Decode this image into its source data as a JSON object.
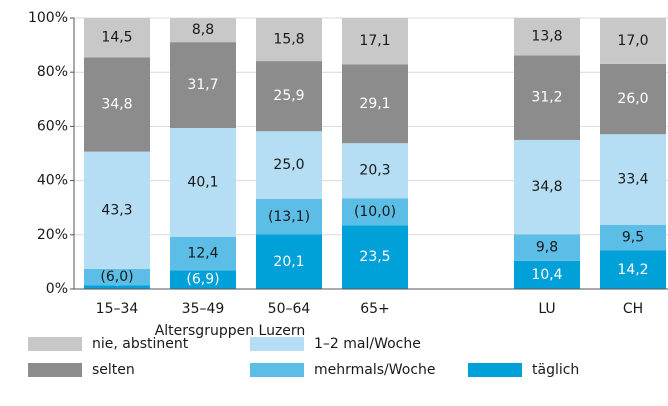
{
  "chart_data": {
    "type": "bar",
    "stacked": true,
    "xlabel": "Altersgruppen Luzern",
    "categories": [
      "15–34",
      "35–49",
      "50–64",
      "65+",
      null,
      "LU",
      "CH"
    ],
    "ylim": [
      0,
      100
    ],
    "yticks": [
      {
        "value": 0,
        "label": "0%"
      },
      {
        "value": 20,
        "label": "20%"
      },
      {
        "value": 40,
        "label": "40%"
      },
      {
        "value": 60,
        "label": "60%"
      },
      {
        "value": 80,
        "label": "80%"
      },
      {
        "value": 100,
        "label": "100%"
      }
    ],
    "grid": true,
    "series": [
      {
        "name": "täglich",
        "color": "#00a0d8",
        "label_color": "#ffffff",
        "values": [
          1.4,
          6.9,
          20.1,
          23.5,
          null,
          10.4,
          14.2
        ],
        "value_labels": [
          "*",
          "(6,9)",
          "20,1",
          "23,5",
          null,
          "10,4",
          "14,2"
        ]
      },
      {
        "name": "mehrmals/Woche",
        "color": "#5cbde6",
        "label_color": "#1a1a1a",
        "values": [
          6.0,
          12.4,
          13.1,
          10.0,
          null,
          9.8,
          9.5
        ],
        "value_labels": [
          "(6,0)",
          "12,4",
          "(13,1)",
          "(10,0)",
          null,
          "9,8",
          "9,5"
        ]
      },
      {
        "name": "1–2 mal/Woche",
        "color": "#b5def4",
        "label_color": "#1a1a1a",
        "values": [
          43.3,
          40.1,
          25.0,
          20.3,
          null,
          34.8,
          33.4
        ],
        "value_labels": [
          "43,3",
          "40,1",
          "25,0",
          "20,3",
          null,
          "34,8",
          "33,4"
        ]
      },
      {
        "name": "selten",
        "color": "#8c8c8c",
        "label_color": "#ffffff",
        "values": [
          34.8,
          31.7,
          25.9,
          29.1,
          null,
          31.2,
          26.0
        ],
        "value_labels": [
          "34,8",
          "31,7",
          "25,9",
          "29,1",
          null,
          "31,2",
          "26,0"
        ]
      },
      {
        "name": "nie, abstinent",
        "color": "#c8c8c8",
        "label_color": "#1a1a1a",
        "values": [
          14.5,
          8.8,
          15.8,
          17.1,
          null,
          13.8,
          17.0
        ],
        "value_labels": [
          "14,5",
          "8,8",
          "15,8",
          "17,1",
          null,
          "13,8",
          "17,0"
        ]
      }
    ]
  }
}
